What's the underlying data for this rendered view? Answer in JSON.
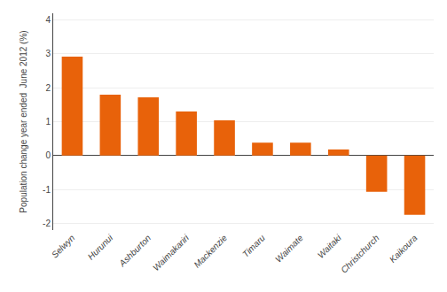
{
  "chart_data": {
    "type": "bar",
    "categories": [
      "Selwyn",
      "Hurunui",
      "Ashburton",
      "Waimakariri",
      "Mackenzie",
      "Timaru",
      "Waimate",
      "Waitaki",
      "Christchurch",
      "Kaikoura"
    ],
    "values": [
      2.92,
      1.8,
      1.72,
      1.3,
      1.04,
      0.38,
      0.38,
      0.18,
      -1.07,
      -1.75
    ],
    "color": "#E8620A",
    "ylabel": "Population change year ended  June 2012 (%)",
    "ylim": [
      -2.2,
      4.2
    ],
    "yticks": [
      -2,
      -1,
      0,
      1,
      2,
      3,
      4
    ],
    "grid": true
  }
}
